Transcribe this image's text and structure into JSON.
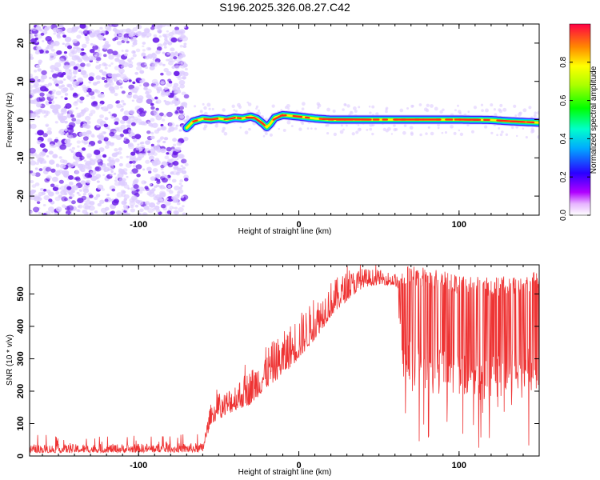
{
  "title": "S196.2025.326.08.27.C42",
  "colors": {
    "series": "#ee3333",
    "scatter_low": "#ddccff",
    "scatter_high": "#6a1be8"
  },
  "chart_data": [
    {
      "type": "heatmap",
      "name": "dynamic-spectrum",
      "xlabel": "Height of straight line (km)",
      "ylabel": "Frequency (Hz)",
      "xlim": [
        -168,
        150
      ],
      "ylim": [
        -25,
        25
      ],
      "xticks": [
        -100,
        0,
        100
      ],
      "xtick_labels": [
        "-100",
        "0",
        "100"
      ],
      "yticks": [
        -20,
        -10,
        0,
        10,
        20
      ],
      "ytick_labels": [
        "-20",
        "-10",
        "0",
        "10",
        "20"
      ],
      "noise_region_x": [
        -168,
        -70
      ],
      "signal_track": {
        "x": [
          -70,
          -66,
          -60,
          -55,
          -50,
          -45,
          -40,
          -35,
          -30,
          -26,
          -22,
          -20,
          -18,
          -15,
          -10,
          -5,
          0,
          10,
          20,
          40,
          60,
          80,
          100,
          120,
          130,
          140,
          150
        ],
        "freq": [
          -2.2,
          -0.5,
          0.2,
          0,
          0.3,
          0,
          0.5,
          0.3,
          0.8,
          0.2,
          -1.2,
          -2.0,
          -1.2,
          0.5,
          1.2,
          1.0,
          0.8,
          0.3,
          0,
          0,
          0,
          0,
          0,
          -0.1,
          -0.4,
          -0.6,
          -0.8
        ]
      },
      "colorbar": {
        "label": "Normalized spectral amplitude",
        "range": [
          0,
          1
        ],
        "ticks": [
          0.0,
          0.2,
          0.4,
          0.6,
          0.8
        ],
        "tick_labels": [
          "0.0",
          "0.2",
          "0.4",
          "0.6",
          "0.8"
        ]
      }
    },
    {
      "type": "line",
      "name": "snr-trace",
      "xlabel": "Height of straight line (km)",
      "ylabel": "SNR (10 * v/v)",
      "xlim": [
        -168,
        150
      ],
      "ylim": [
        0,
        590
      ],
      "xticks": [
        -100,
        0,
        100
      ],
      "xtick_labels": [
        "-100",
        "0",
        "100"
      ],
      "yticks": [
        0,
        100,
        200,
        300,
        400,
        500
      ],
      "ytick_labels": [
        "0",
        "100",
        "200",
        "300",
        "400",
        "500"
      ],
      "envelope": {
        "x": [
          -168,
          -60,
          -55,
          -40,
          -30,
          -20,
          -10,
          0,
          10,
          20,
          30,
          40,
          50,
          60,
          62,
          65,
          80,
          100,
          120,
          140,
          150
        ],
        "base": [
          10,
          12,
          100,
          140,
          160,
          210,
          250,
          300,
          360,
          430,
          480,
          520,
          530,
          525,
          515,
          300,
          280,
          270,
          260,
          270,
          300
        ],
        "upper": [
          35,
          40,
          160,
          230,
          270,
          340,
          380,
          440,
          480,
          540,
          570,
          580,
          575,
          565,
          560,
          590,
          580,
          560,
          550,
          560,
          580
        ]
      }
    }
  ]
}
